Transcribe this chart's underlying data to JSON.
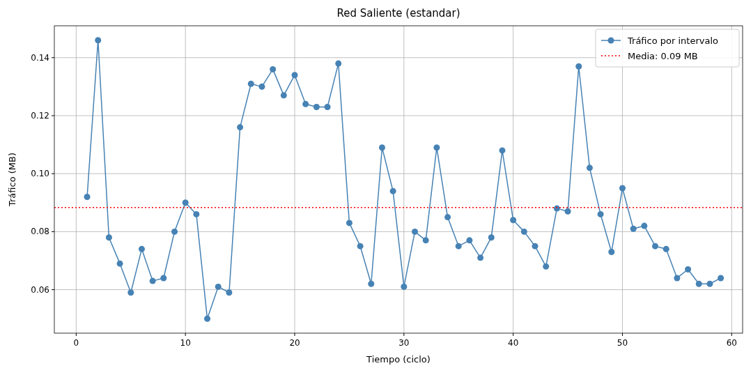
{
  "chart_data": {
    "type": "line",
    "title": "Red Saliente (estandar)",
    "xlabel": "Tiempo (ciclo)",
    "ylabel": "Tráfico (MB)",
    "x": [
      1,
      2,
      3,
      4,
      5,
      6,
      7,
      8,
      9,
      10,
      11,
      12,
      13,
      14,
      15,
      16,
      17,
      18,
      19,
      20,
      21,
      22,
      23,
      24,
      25,
      26,
      27,
      28,
      29,
      30,
      31,
      32,
      33,
      34,
      35,
      36,
      37,
      38,
      39,
      40,
      41,
      42,
      43,
      44,
      45,
      46,
      47,
      48,
      49,
      50,
      51,
      52,
      53,
      54,
      55,
      56,
      57,
      58,
      59
    ],
    "series": [
      {
        "name": "Tráfico por intervalo",
        "color": "#4682b4",
        "values": [
          0.092,
          0.146,
          0.078,
          0.069,
          0.059,
          0.074,
          0.063,
          0.064,
          0.08,
          0.09,
          0.086,
          0.05,
          0.061,
          0.059,
          0.116,
          0.131,
          0.13,
          0.136,
          0.127,
          0.134,
          0.124,
          0.123,
          0.123,
          0.138,
          0.083,
          0.075,
          0.062,
          0.109,
          0.094,
          0.061,
          0.08,
          0.077,
          0.109,
          0.085,
          0.075,
          0.077,
          0.071,
          0.078,
          0.108,
          0.084,
          0.08,
          0.075,
          0.068,
          0.088,
          0.087,
          0.137,
          0.102,
          0.086,
          0.073,
          0.095,
          0.081,
          0.082,
          0.075,
          0.074,
          0.064,
          0.067,
          0.062,
          0.062,
          0.064
        ]
      }
    ],
    "ref_lines": [
      {
        "axis": "y",
        "value": 0.0883,
        "label": "Media: 0.09 MB",
        "color": "#ff0000",
        "line_style": "dotted"
      }
    ],
    "xlim": [
      -2,
      61
    ],
    "xticks": [
      0,
      10,
      20,
      30,
      40,
      50,
      60
    ],
    "ylim": [
      0.045,
      0.151
    ],
    "yticks": [
      {
        "value": 0.06,
        "label": "0.06"
      },
      {
        "value": 0.08,
        "label": "0.08"
      },
      {
        "value": 0.1,
        "label": "0.10"
      },
      {
        "value": 0.12,
        "label": "0.12"
      },
      {
        "value": 0.14,
        "label": "0.14"
      }
    ],
    "grid": true,
    "legend": "top right",
    "marker": "circle",
    "line_style": "solid"
  }
}
